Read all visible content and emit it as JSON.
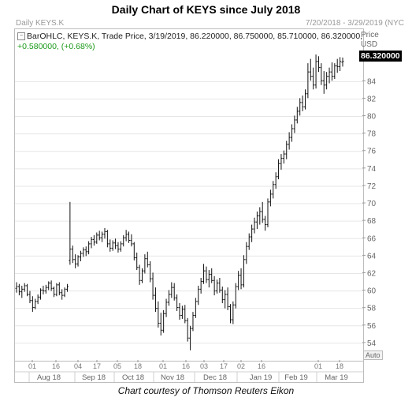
{
  "title": "Daily Chart of KEYS since July 2018",
  "header": {
    "symbol": "Daily KEYS.K",
    "date_range": "7/20/2018 - 3/29/2019 (NYC"
  },
  "info": {
    "line1": "BarOHLC, KEYS.K, Trade Price, 3/19/2019, 86.220000, 86.750000, 85.710000, 86.320000,",
    "line2": "+0.580000, (+0.68%)"
  },
  "axis_caption": {
    "price": "Price",
    "currency": "USD"
  },
  "last_price": "86.320000",
  "auto_label": "Auto",
  "caption": "Chart courtesy of Thomson Reuters Eikon",
  "colors": {
    "bars": "#111111",
    "change": "#1a9a1a",
    "grid": "#e6e6e6"
  },
  "chart_data": {
    "type": "bar",
    "style": "OHLC",
    "ylim": [
      52,
      90
    ],
    "y_ticks": [
      54,
      56,
      58,
      60,
      62,
      64,
      66,
      68,
      70,
      72,
      74,
      76,
      78,
      80,
      82,
      84
    ],
    "x_day_ticks": [
      "01",
      "16",
      "04",
      "17",
      "05",
      "18",
      "01",
      "16",
      "03",
      "17",
      "02",
      "16",
      "01",
      "18"
    ],
    "x_month_labels": [
      "Aug 18",
      "Sep 18",
      "Oct 18",
      "Nov 18",
      "Dec 18",
      "Jan 19",
      "Feb 19",
      "Mar 19"
    ],
    "grid": "horizontal",
    "series": [
      {
        "values": [
          [
            60.3,
            61.0,
            59.8,
            60.5
          ],
          [
            60.5,
            60.8,
            59.5,
            59.9
          ],
          [
            59.9,
            60.6,
            59.2,
            60.2
          ],
          [
            60.2,
            60.9,
            59.9,
            60.6
          ],
          [
            60.6,
            60.8,
            59.4,
            59.6
          ],
          [
            59.6,
            60.0,
            58.6,
            58.9
          ],
          [
            58.9,
            59.4,
            57.6,
            58.1
          ],
          [
            58.1,
            59.1,
            57.9,
            58.8
          ],
          [
            58.8,
            59.6,
            58.5,
            59.3
          ],
          [
            59.3,
            60.3,
            59.0,
            60.1
          ],
          [
            60.1,
            60.6,
            59.6,
            60.0
          ],
          [
            60.0,
            60.7,
            59.7,
            60.4
          ],
          [
            60.4,
            61.1,
            60.1,
            60.9
          ],
          [
            60.9,
            61.2,
            60.0,
            60.3
          ],
          [
            60.3,
            60.5,
            59.3,
            59.6
          ],
          [
            59.6,
            60.9,
            59.4,
            60.7
          ],
          [
            60.7,
            61.0,
            59.5,
            59.8
          ],
          [
            59.8,
            60.2,
            59.0,
            59.5
          ],
          [
            59.5,
            60.4,
            59.3,
            60.2
          ],
          [
            60.2,
            60.8,
            59.9,
            60.5
          ],
          [
            63.5,
            70.2,
            63.0,
            64.8
          ],
          [
            64.8,
            65.2,
            63.2,
            63.6
          ],
          [
            63.6,
            64.2,
            62.6,
            63.1
          ],
          [
            63.1,
            64.1,
            62.8,
            63.9
          ],
          [
            63.9,
            64.6,
            63.4,
            64.3
          ],
          [
            64.3,
            65.0,
            63.9,
            64.7
          ],
          [
            64.7,
            65.1,
            64.0,
            64.5
          ],
          [
            64.5,
            65.7,
            64.2,
            65.4
          ],
          [
            65.4,
            66.2,
            64.9,
            65.9
          ],
          [
            65.9,
            66.4,
            65.2,
            65.6
          ],
          [
            65.6,
            66.7,
            65.4,
            66.4
          ],
          [
            66.4,
            66.9,
            65.8,
            66.1
          ],
          [
            66.1,
            66.8,
            65.6,
            66.5
          ],
          [
            66.5,
            67.2,
            66.0,
            66.8
          ],
          [
            66.8,
            67.0,
            65.0,
            65.4
          ],
          [
            65.4,
            65.9,
            64.5,
            64.9
          ],
          [
            64.9,
            65.8,
            64.6,
            65.5
          ],
          [
            65.5,
            66.0,
            64.8,
            65.2
          ],
          [
            65.2,
            65.6,
            64.4,
            64.8
          ],
          [
            64.8,
            65.7,
            64.5,
            65.4
          ],
          [
            65.4,
            66.4,
            65.1,
            66.1
          ],
          [
            66.1,
            67.0,
            65.7,
            66.5
          ],
          [
            66.5,
            66.8,
            65.5,
            65.8
          ],
          [
            65.8,
            66.5,
            65.1,
            65.4
          ],
          [
            65.4,
            65.6,
            63.5,
            63.8
          ],
          [
            63.8,
            64.4,
            62.4,
            62.7
          ],
          [
            62.7,
            63.0,
            60.7,
            61.2
          ],
          [
            61.2,
            62.6,
            60.9,
            62.3
          ],
          [
            62.3,
            64.2,
            62.0,
            63.7
          ],
          [
            63.7,
            64.5,
            62.7,
            63.0
          ],
          [
            63.0,
            63.4,
            61.0,
            61.4
          ],
          [
            61.4,
            62.1,
            59.0,
            59.5
          ],
          [
            59.5,
            60.4,
            57.6,
            58.0
          ],
          [
            58.0,
            58.8,
            55.8,
            56.3
          ],
          [
            56.3,
            57.5,
            54.9,
            55.5
          ],
          [
            55.5,
            57.8,
            55.2,
            57.4
          ],
          [
            57.4,
            59.1,
            57.0,
            58.7
          ],
          [
            58.7,
            60.1,
            58.3,
            59.6
          ],
          [
            59.6,
            61.0,
            59.2,
            60.4
          ],
          [
            60.4,
            60.9,
            58.9,
            59.2
          ],
          [
            59.2,
            59.6,
            57.7,
            58.1
          ],
          [
            58.1,
            58.6,
            56.7,
            57.2
          ],
          [
            57.2,
            58.3,
            56.8,
            57.9
          ],
          [
            57.9,
            58.4,
            56.3,
            56.6
          ],
          [
            56.6,
            56.9,
            54.2,
            54.6
          ],
          [
            54.6,
            56.0,
            53.2,
            55.7
          ],
          [
            55.7,
            57.6,
            55.4,
            57.2
          ],
          [
            57.2,
            59.2,
            56.9,
            58.8
          ],
          [
            58.8,
            60.6,
            58.4,
            60.2
          ],
          [
            60.2,
            61.5,
            59.7,
            61.1
          ],
          [
            61.1,
            63.1,
            60.8,
            62.3
          ],
          [
            62.3,
            62.8,
            60.9,
            61.3
          ],
          [
            61.3,
            62.4,
            60.4,
            61.9
          ],
          [
            61.9,
            62.6,
            60.9,
            61.2
          ],
          [
            61.2,
            61.7,
            59.5,
            60.0
          ],
          [
            60.0,
            61.3,
            59.7,
            60.9
          ],
          [
            60.9,
            61.5,
            59.8,
            60.1
          ],
          [
            60.1,
            60.5,
            58.6,
            59.0
          ],
          [
            59.0,
            60.1,
            58.0,
            59.6
          ],
          [
            59.6,
            60.4,
            57.8,
            58.2
          ],
          [
            58.2,
            58.5,
            56.3,
            56.7
          ],
          [
            56.7,
            58.8,
            56.2,
            58.4
          ],
          [
            58.4,
            60.9,
            58.0,
            60.5
          ],
          [
            60.5,
            62.3,
            60.1,
            61.8
          ],
          [
            61.8,
            62.6,
            60.2,
            60.7
          ],
          [
            60.7,
            64.1,
            60.4,
            63.6
          ],
          [
            63.6,
            65.6,
            63.1,
            65.1
          ],
          [
            65.1,
            66.6,
            64.7,
            66.2
          ],
          [
            66.2,
            67.6,
            65.6,
            67.1
          ],
          [
            67.1,
            68.4,
            66.6,
            67.9
          ],
          [
            67.9,
            69.1,
            67.1,
            68.6
          ],
          [
            68.6,
            69.6,
            67.6,
            69.1
          ],
          [
            69.1,
            70.2,
            67.8,
            68.2
          ],
          [
            68.2,
            68.6,
            66.9,
            67.6
          ],
          [
            67.6,
            70.6,
            67.3,
            70.2
          ],
          [
            70.2,
            71.6,
            69.7,
            71.1
          ],
          [
            71.1,
            72.6,
            70.6,
            72.2
          ],
          [
            72.2,
            73.6,
            71.7,
            73.1
          ],
          [
            73.1,
            75.1,
            72.8,
            74.6
          ],
          [
            74.6,
            75.7,
            73.9,
            75.2
          ],
          [
            75.2,
            76.1,
            74.6,
            75.7
          ],
          [
            75.7,
            77.2,
            75.1,
            76.8
          ],
          [
            76.8,
            78.2,
            76.2,
            77.6
          ],
          [
            77.6,
            79.1,
            77.1,
            78.6
          ],
          [
            78.6,
            80.1,
            78.1,
            79.6
          ],
          [
            79.6,
            81.1,
            79.2,
            80.6
          ],
          [
            80.6,
            82.1,
            80.1,
            81.6
          ],
          [
            81.6,
            82.4,
            80.6,
            81.1
          ],
          [
            81.1,
            83.1,
            80.8,
            82.6
          ],
          [
            82.6,
            86.1,
            82.1,
            85.1
          ],
          [
            85.1,
            86.6,
            84.1,
            84.6
          ],
          [
            84.6,
            85.6,
            83.1,
            83.6
          ],
          [
            83.6,
            87.1,
            83.2,
            86.3
          ],
          [
            86.3,
            86.9,
            85.1,
            85.6
          ],
          [
            85.6,
            86.1,
            83.6,
            84.1
          ],
          [
            84.1,
            85.2,
            82.6,
            83.6
          ],
          [
            83.6,
            85.1,
            83.1,
            84.6
          ],
          [
            84.6,
            85.6,
            83.8,
            85.1
          ],
          [
            85.1,
            86.2,
            84.1,
            84.6
          ],
          [
            84.6,
            86.1,
            84.3,
            85.8
          ],
          [
            85.8,
            86.6,
            85.0,
            85.7
          ],
          [
            85.7,
            86.8,
            85.2,
            86.3
          ],
          [
            86.22,
            86.75,
            85.71,
            86.32
          ]
        ]
      }
    ]
  }
}
